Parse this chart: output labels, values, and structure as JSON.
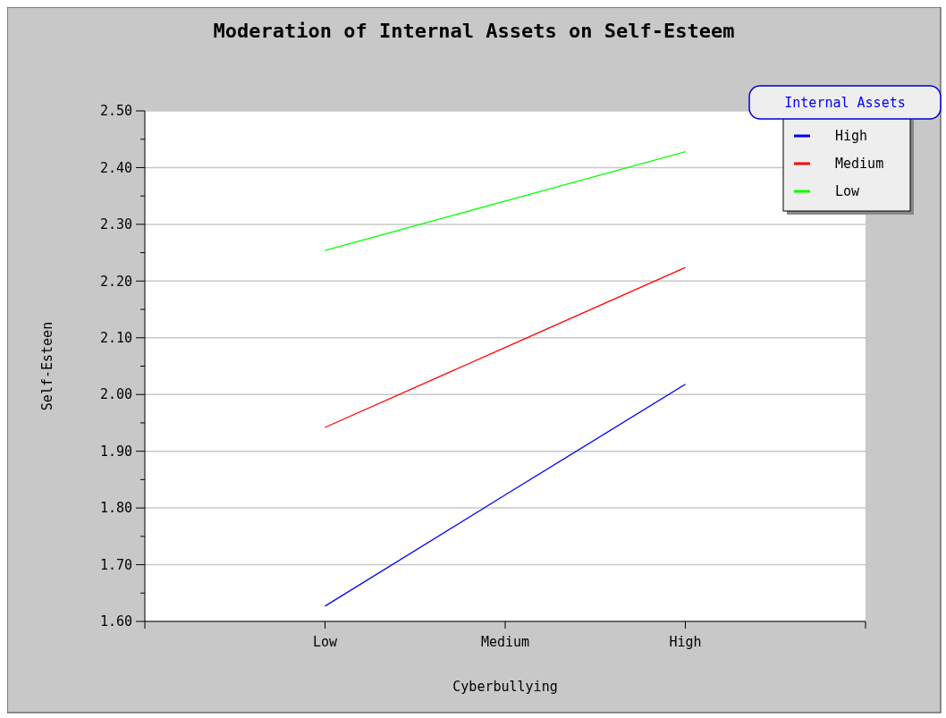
{
  "chart_data": {
    "type": "line",
    "title": "Moderation of Internal Assets on Self-Esteem",
    "xlabel": "Cyberbullying",
    "ylabel": "Self-Esteen",
    "legend_title": "Internal Assets",
    "categories": [
      "Low",
      "Medium",
      "High"
    ],
    "series": [
      {
        "name": "High",
        "color": "#0000ff",
        "values": [
          1.627,
          1.823,
          2.018
        ]
      },
      {
        "name": "Medium",
        "color": "#ff0000",
        "values": [
          1.942,
          2.083,
          2.224
        ]
      },
      {
        "name": "Low",
        "color": "#00ff00",
        "values": [
          2.254,
          2.341,
          2.428
        ]
      }
    ],
    "ylim": [
      1.6,
      2.5
    ],
    "yticks": [
      {
        "value": 1.6,
        "label": "1.60"
      },
      {
        "value": 1.7,
        "label": "1.70"
      },
      {
        "value": 1.8,
        "label": "1.80"
      },
      {
        "value": 1.9,
        "label": "1.90"
      },
      {
        "value": 2.0,
        "label": "2.00"
      },
      {
        "value": 2.1,
        "label": "2.10"
      },
      {
        "value": 2.2,
        "label": "2.20"
      },
      {
        "value": 2.3,
        "label": "2.30"
      },
      {
        "value": 2.4,
        "label": "2.40"
      },
      {
        "value": 2.5,
        "label": "2.50"
      }
    ],
    "grid": "y",
    "legend": "top right",
    "marker": "none",
    "line_style": "solid"
  }
}
